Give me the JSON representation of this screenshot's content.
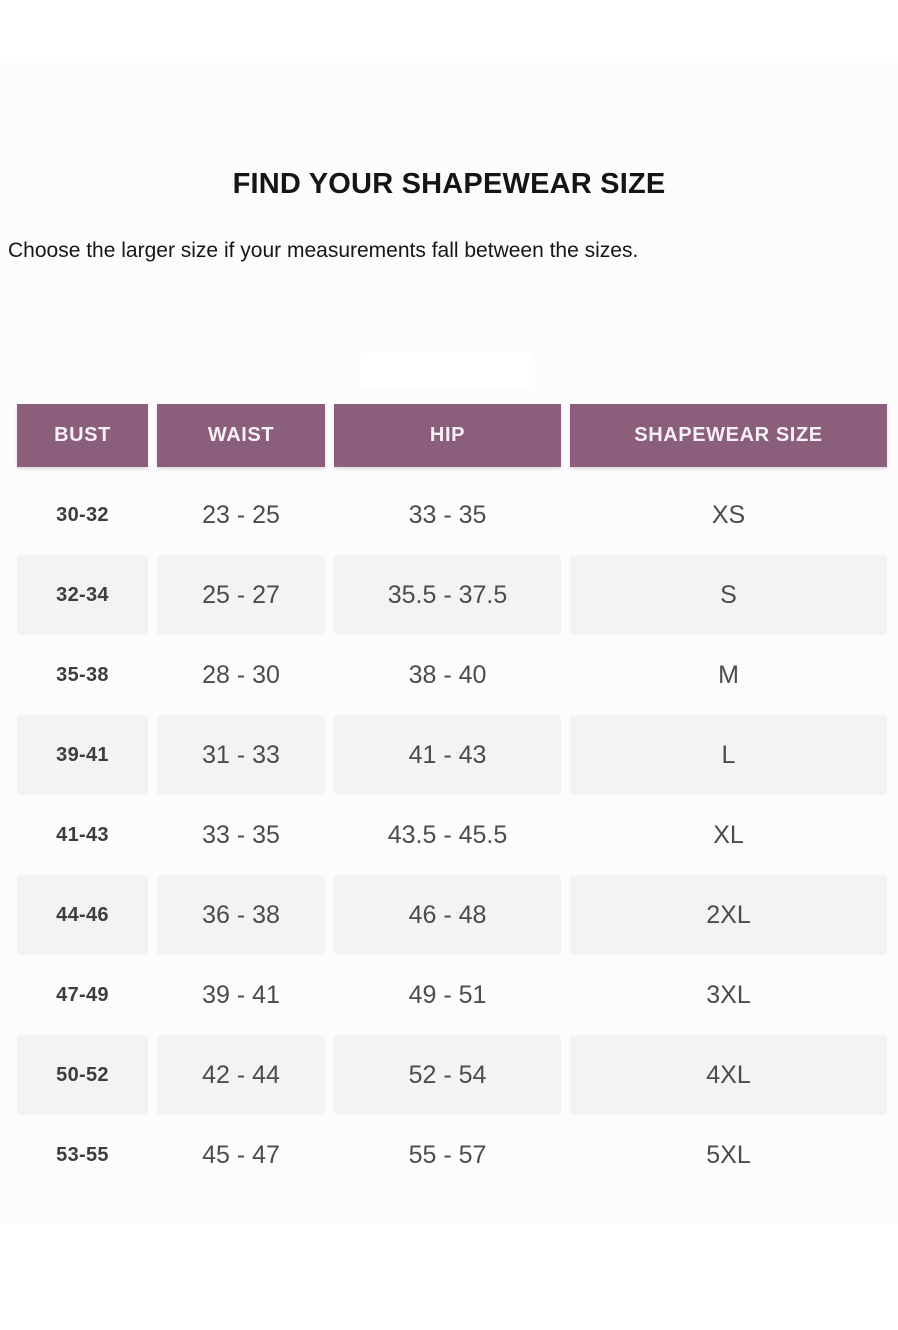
{
  "page": {
    "title": "FIND YOUR SHAPEWEAR SIZE",
    "subtitle": "Choose the larger size if your measurements fall between the sizes."
  },
  "colors": {
    "header_bg": "#8b5e7c",
    "header_text": "#f7f0f5",
    "row_alt_bg": "#f4f2f3",
    "title_text": "#151515",
    "cell_text": "#4c4c4c",
    "bust_text": "#3d3d3d"
  },
  "table": {
    "headers": [
      "BUST",
      "WAIST",
      "HIP",
      "SHAPEWEAR SIZE"
    ],
    "rows": [
      [
        "30-32",
        "23 - 25",
        "33 - 35",
        "XS"
      ],
      [
        "32-34",
        "25 - 27",
        "35.5 - 37.5",
        "S"
      ],
      [
        "35-38",
        "28 - 30",
        "38 - 40",
        "M"
      ],
      [
        "39-41",
        "31 - 33",
        "41 - 43",
        "L"
      ],
      [
        "41-43",
        "33 - 35",
        "43.5 - 45.5",
        "XL"
      ],
      [
        "44-46",
        "36 - 38",
        "46 - 48",
        "2XL"
      ],
      [
        "47-49",
        "39 - 41",
        "49 - 51",
        "3XL"
      ],
      [
        "50-52",
        "42 - 44",
        "52 - 54",
        "4XL"
      ],
      [
        "53-55",
        "45 - 47",
        "55 - 57",
        "5XL"
      ]
    ]
  },
  "chart_data": {
    "type": "table",
    "title": "FIND YOUR SHAPEWEAR SIZE",
    "columns": [
      "BUST",
      "WAIST",
      "HIP",
      "SHAPEWEAR SIZE"
    ],
    "rows": [
      [
        "30-32",
        "23 - 25",
        "33 - 35",
        "XS"
      ],
      [
        "32-34",
        "25 - 27",
        "35.5 - 37.5",
        "S"
      ],
      [
        "35-38",
        "28 - 30",
        "38 - 40",
        "M"
      ],
      [
        "39-41",
        "31 - 33",
        "41 - 43",
        "L"
      ],
      [
        "41-43",
        "33 - 35",
        "43.5 - 45.5",
        "XL"
      ],
      [
        "44-46",
        "36 - 38",
        "46 - 48",
        "2XL"
      ],
      [
        "47-49",
        "39 - 41",
        "49 - 51",
        "3XL"
      ],
      [
        "50-52",
        "42 - 44",
        "52 - 54",
        "4XL"
      ],
      [
        "53-55",
        "45 - 47",
        "55 - 57",
        "5XL"
      ]
    ]
  }
}
